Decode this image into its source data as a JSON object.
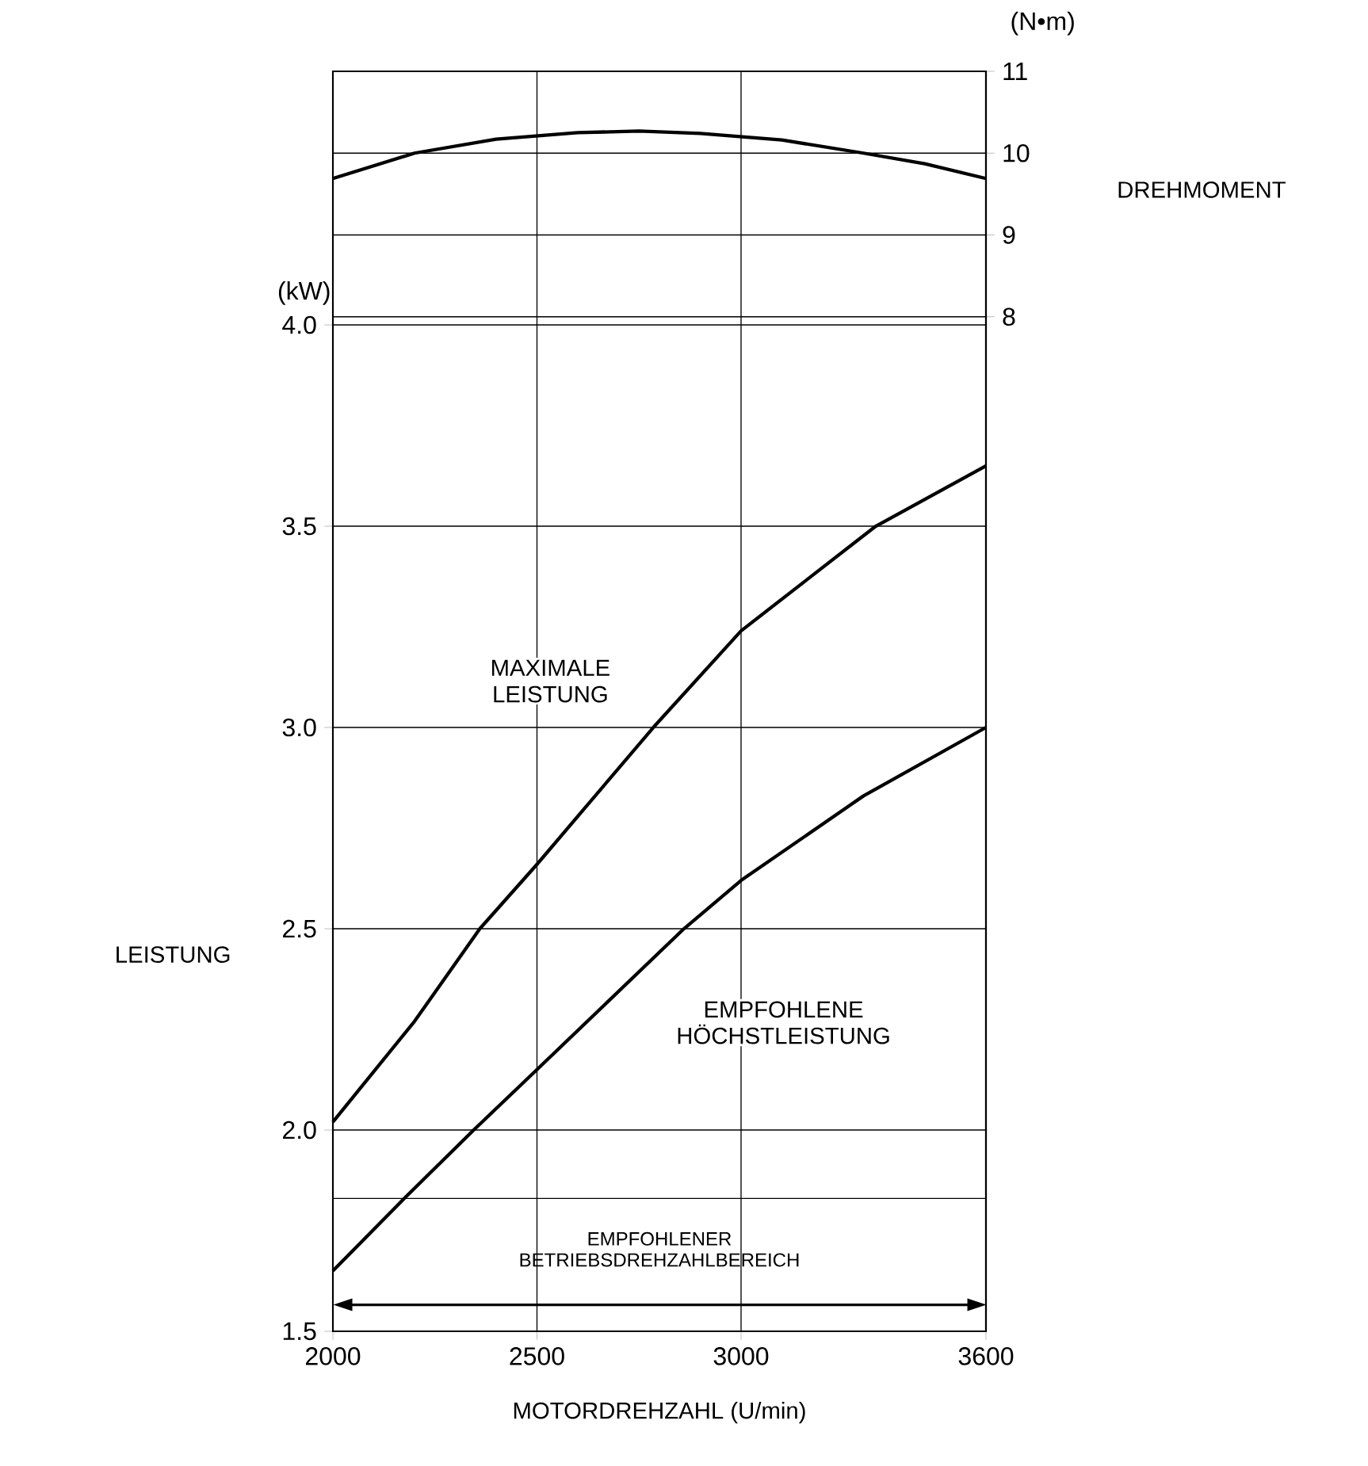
{
  "chart_data": {
    "type": "line",
    "xlabel": "MOTORDREHZAHL (U/min)",
    "ylabel": "LEISTUNG",
    "y2label": "DREHMOMENT",
    "annotations": [
      "(kW)",
      "(N•m)",
      "EMPFOHLENER BETRIEBSDREHZAHLBEREICH"
    ],
    "series": [
      {
        "name": "MAXIMALE LEISTUNG",
        "color": "#000000",
        "x": [
          2000,
          2200,
          2360,
          2500,
          2785,
          3000,
          3330,
          3600
        ],
        "values": [
          2.02,
          2.27,
          2.5,
          2.66,
          3.0,
          3.24,
          3.5,
          3.65
        ]
      },
      {
        "name": "EMPFOHLENE HÖCHSTLEISTUNG",
        "color": "#000000",
        "x": [
          2000,
          2175,
          2345,
          2500,
          2860,
          3000,
          3300,
          3600
        ],
        "values": [
          1.65,
          1.83,
          2.0,
          2.15,
          2.5,
          2.62,
          2.83,
          3.0
        ]
      },
      {
        "color": "#000000",
        "axis": "y2",
        "x": [
          2000,
          2200,
          2400,
          2600,
          2750,
          2900,
          3100,
          3300,
          3450,
          3600
        ],
        "values": [
          9.69,
          10.0,
          10.17,
          10.25,
          10.27,
          10.24,
          10.16,
          10.0,
          9.87,
          9.69
        ]
      }
    ],
    "xlim": [
      2000,
      3600
    ],
    "xticks": [
      2000,
      2500,
      3000,
      3600
    ],
    "ylim": [
      1.5,
      4.63
    ],
    "yticks": [
      {
        "value": 1.5,
        "label": "1.5"
      },
      {
        "value": 1.83,
        "label": null
      },
      {
        "value": 2,
        "label": "2.0"
      },
      {
        "value": 2.5,
        "label": "2.5"
      },
      {
        "value": 3,
        "label": "3.0"
      },
      {
        "value": 3.5,
        "label": "3.5"
      },
      {
        "value": 4,
        "label": "4.0"
      }
    ],
    "y2lim": [
      -4.4,
      11
    ],
    "y2ticks": [
      8,
      9,
      10,
      11
    ],
    "grid": true,
    "legend": false,
    "marker": "none",
    "line_style": "solid"
  }
}
